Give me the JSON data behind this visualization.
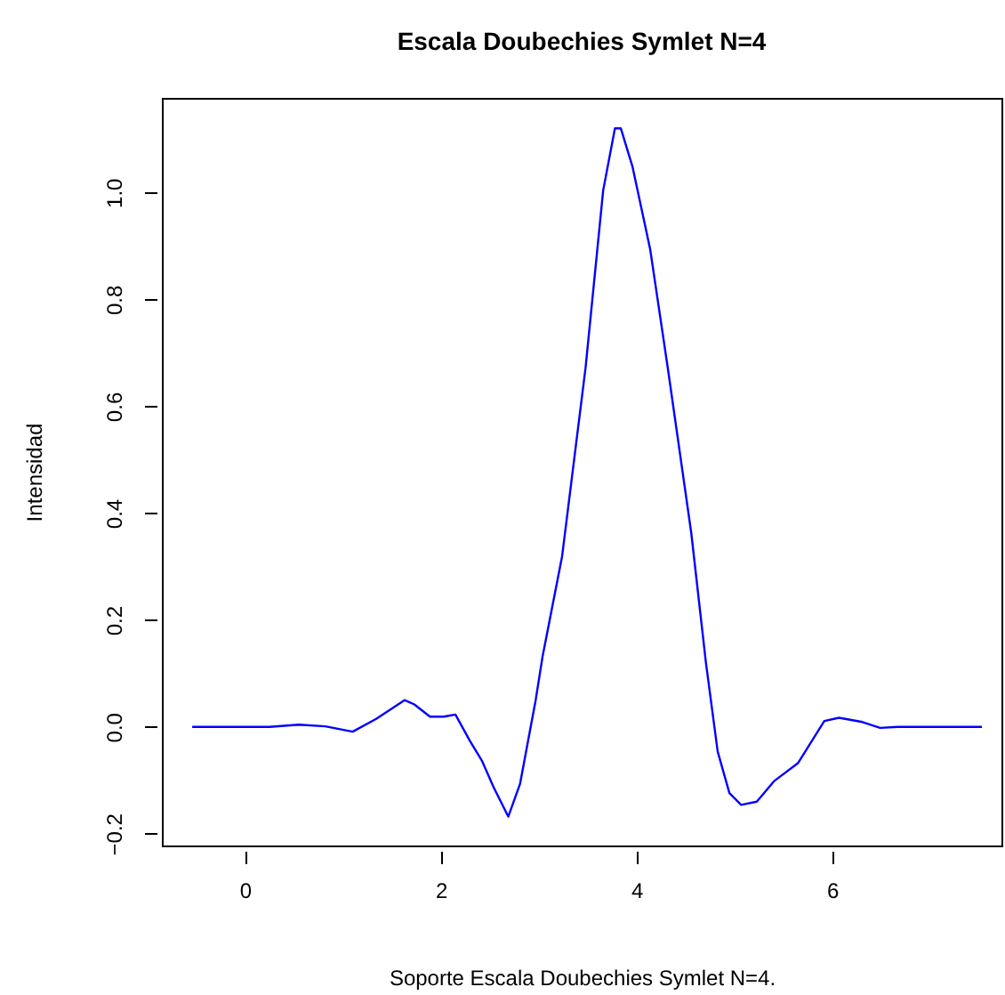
{
  "chart_data": {
    "type": "line",
    "title": "Escala Doubechies Symlet N=4",
    "xlabel": "Soporte Escala Doubechies Symlet N=4.",
    "ylabel": "Intensidad",
    "x": [
      -0.54,
      0.25,
      0.55,
      0.82,
      1.1,
      1.34,
      1.63,
      1.73,
      1.89,
      2.03,
      2.15,
      2.3,
      2.42,
      2.54,
      2.69,
      2.81,
      2.97,
      3.04,
      3.24,
      3.48,
      3.66,
      3.78,
      3.84,
      3.96,
      4.14,
      4.32,
      4.56,
      4.71,
      4.83,
      4.95,
      5.07,
      5.23,
      5.41,
      5.65,
      5.92,
      6.07,
      6.31,
      6.49,
      6.67,
      7.53
    ],
    "series": [
      {
        "color": "#0000ff",
        "values": [
          0,
          0,
          0.004,
          0.001,
          -0.009,
          0.015,
          0.05,
          0.042,
          0.019,
          0.019,
          0.023,
          -0.027,
          -0.063,
          -0.113,
          -0.168,
          -0.107,
          0.05,
          0.131,
          0.319,
          0.672,
          1.004,
          1.12,
          1.12,
          1.048,
          0.894,
          0.672,
          0.363,
          0.12,
          -0.046,
          -0.124,
          -0.146,
          -0.14,
          -0.101,
          -0.068,
          0.011,
          0.017,
          0.009,
          -0.002,
          0,
          0
        ]
      }
    ],
    "xlim": [
      -0.85,
      7.73
    ],
    "ylim": [
      -0.222,
      1.177
    ],
    "xticks": [
      0,
      2,
      4,
      6
    ],
    "yticks": [
      -0.2,
      {
        "value": 0,
        "label": "0.0"
      },
      0.2,
      0.4,
      0.6,
      0.8,
      {
        "value": 1,
        "label": "1.0"
      }
    ],
    "grid": false
  }
}
